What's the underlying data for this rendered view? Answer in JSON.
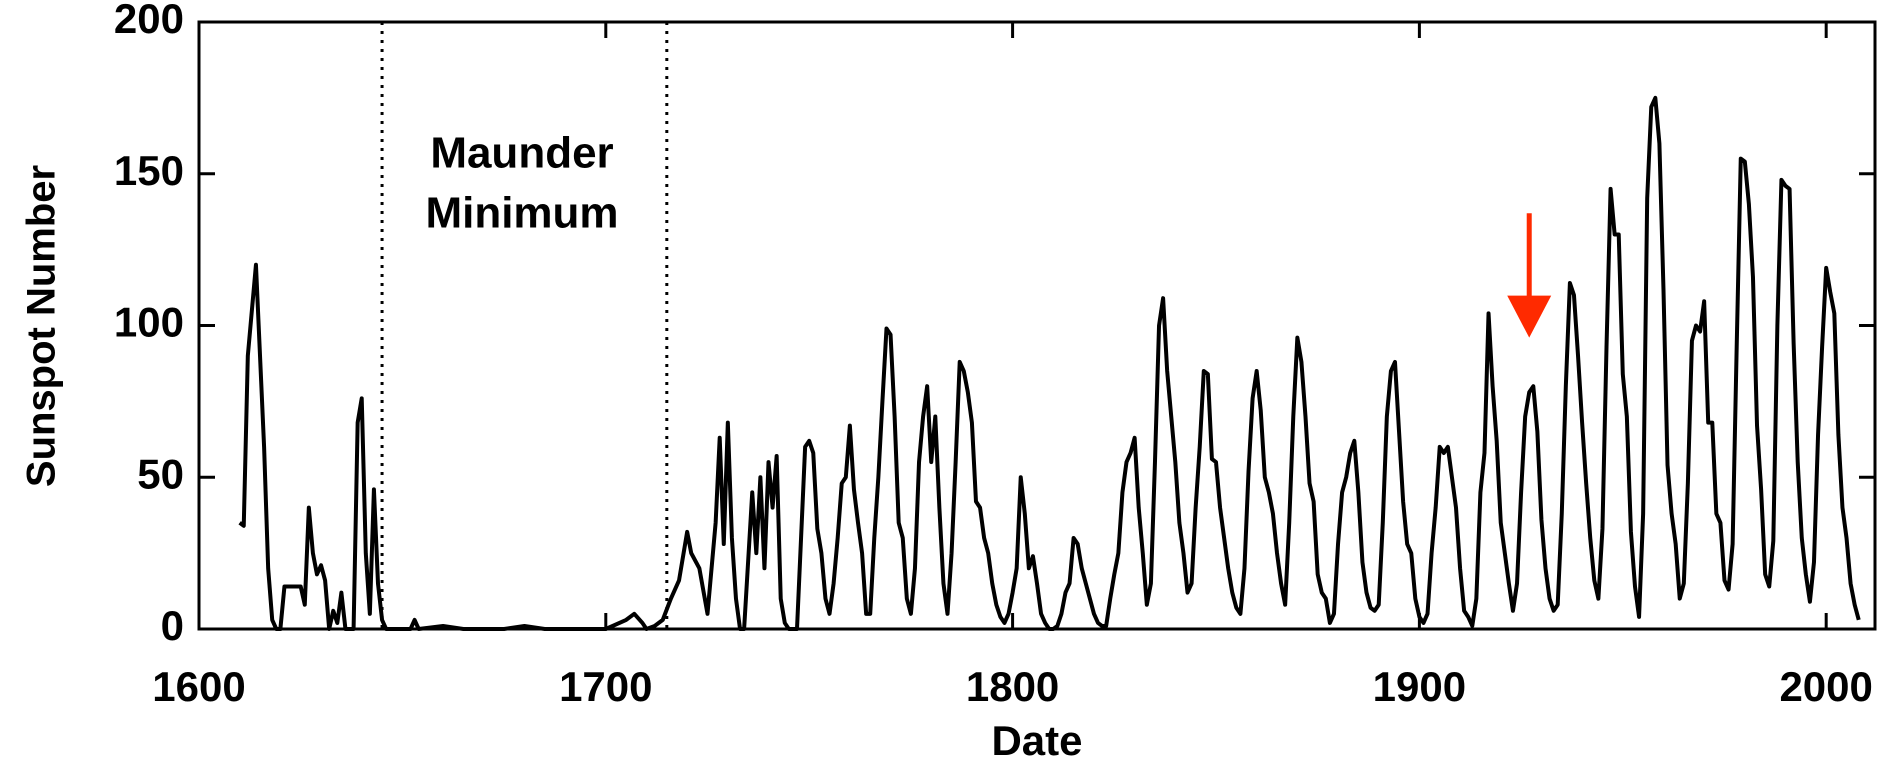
{
  "chart_data": {
    "type": "line",
    "ylabel": "Sunspot Number",
    "xlabel": "Date",
    "annotation_lines": [
      "Maunder",
      "Minimum"
    ],
    "vlines": [
      1645,
      1715
    ],
    "arrow": {
      "x": 1927,
      "y_start": 137,
      "y_end": 96,
      "color": "#ff2a00"
    },
    "xlim": [
      1600,
      2012
    ],
    "ylim": [
      0,
      200
    ],
    "xticks": [
      1600,
      1700,
      1800,
      1900,
      2000
    ],
    "yticks": [
      0,
      50,
      100,
      150,
      200
    ],
    "x": [
      1610,
      1611,
      1612,
      1614,
      1616,
      1617,
      1618,
      1619,
      1620,
      1621,
      1623,
      1625,
      1626,
      1627,
      1628,
      1629,
      1630,
      1631,
      1632,
      1633,
      1634,
      1635,
      1636,
      1638,
      1639,
      1640,
      1641,
      1642,
      1643,
      1644,
      1645,
      1646,
      1650,
      1652,
      1653,
      1654,
      1660,
      1665,
      1670,
      1675,
      1680,
      1685,
      1690,
      1695,
      1700,
      1705,
      1707,
      1709,
      1710,
      1712,
      1714,
      1716,
      1718,
      1720,
      1721,
      1723,
      1725,
      1727,
      1728,
      1729,
      1730,
      1731,
      1732,
      1733,
      1734,
      1736,
      1737,
      1738,
      1739,
      1740,
      1741,
      1742,
      1743,
      1744,
      1745,
      1746,
      1747,
      1749,
      1750,
      1751,
      1752,
      1753,
      1754,
      1755,
      1756,
      1757,
      1758,
      1759,
      1760,
      1761,
      1762,
      1763,
      1764,
      1765,
      1766,
      1767,
      1768,
      1769,
      1770,
      1771,
      1772,
      1773,
      1774,
      1775,
      1776,
      1777,
      1778,
      1779,
      1780,
      1781,
      1782,
      1783,
      1784,
      1785,
      1786,
      1787,
      1788,
      1789,
      1790,
      1791,
      1792,
      1793,
      1794,
      1795,
      1796,
      1797,
      1798,
      1799,
      1800,
      1801,
      1802,
      1803,
      1804,
      1805,
      1806,
      1807,
      1808,
      1809,
      1810,
      1811,
      1812,
      1813,
      1814,
      1815,
      1816,
      1817,
      1818,
      1819,
      1820,
      1821,
      1822,
      1823,
      1824,
      1825,
      1826,
      1827,
      1828,
      1829,
      1830,
      1831,
      1832,
      1833,
      1834,
      1835,
      1836,
      1837,
      1838,
      1839,
      1840,
      1841,
      1842,
      1843,
      1844,
      1845,
      1846,
      1847,
      1848,
      1849,
      1850,
      1851,
      1852,
      1853,
      1854,
      1855,
      1856,
      1857,
      1858,
      1859,
      1860,
      1861,
      1862,
      1863,
      1864,
      1865,
      1866,
      1867,
      1868,
      1869,
      1870,
      1871,
      1872,
      1873,
      1874,
      1875,
      1876,
      1877,
      1878,
      1879,
      1880,
      1881,
      1882,
      1883,
      1884,
      1885,
      1886,
      1887,
      1888,
      1889,
      1890,
      1891,
      1892,
      1893,
      1894,
      1895,
      1896,
      1897,
      1898,
      1899,
      1900,
      1901,
      1902,
      1903,
      1904,
      1905,
      1906,
      1907,
      1908,
      1909,
      1910,
      1911,
      1912,
      1913,
      1914,
      1915,
      1916,
      1917,
      1918,
      1919,
      1920,
      1921,
      1922,
      1923,
      1924,
      1925,
      1926,
      1927,
      1928,
      1929,
      1930,
      1931,
      1932,
      1933,
      1934,
      1935,
      1936,
      1937,
      1938,
      1939,
      1940,
      1941,
      1942,
      1943,
      1944,
      1945,
      1946,
      1947,
      1948,
      1949,
      1950,
      1951,
      1952,
      1953,
      1954,
      1955,
      1956,
      1957,
      1958,
      1959,
      1960,
      1961,
      1962,
      1963,
      1964,
      1965,
      1966,
      1967,
      1968,
      1969,
      1970,
      1971,
      1972,
      1973,
      1974,
      1975,
      1976,
      1977,
      1978,
      1979,
      1980,
      1981,
      1982,
      1983,
      1984,
      1985,
      1986,
      1987,
      1988,
      1989,
      1990,
      1991,
      1992,
      1993,
      1994,
      1995,
      1996,
      1997,
      1998,
      1999,
      2000,
      2001,
      2002,
      2003,
      2004,
      2005,
      2006,
      2007,
      2008
    ],
    "series": [
      {
        "color": "#000000",
        "values": [
          35,
          34,
          90,
          120,
          60,
          20,
          3,
          0,
          0,
          14,
          14,
          14,
          8,
          40,
          25,
          18,
          21,
          16,
          0,
          6,
          2,
          12,
          0,
          0,
          68,
          76,
          25,
          5,
          46,
          15,
          3,
          0,
          0,
          0,
          3,
          0,
          1,
          0,
          0,
          0,
          1,
          0,
          0,
          0,
          0,
          3,
          5,
          2,
          0,
          1,
          3,
          10,
          16,
          32,
          25,
          20,
          5,
          35,
          63,
          28,
          68,
          30,
          10,
          0,
          0,
          45,
          25,
          50,
          20,
          55,
          40,
          57,
          10,
          2,
          0,
          0,
          0,
          60,
          62,
          58,
          33,
          25,
          10,
          5,
          15,
          30,
          48,
          50,
          67,
          46,
          35,
          25,
          5,
          5,
          30,
          50,
          75,
          99,
          97,
          70,
          35,
          30,
          10,
          5,
          20,
          55,
          70,
          80,
          55,
          70,
          40,
          15,
          5,
          25,
          55,
          88,
          85,
          78,
          68,
          42,
          40,
          30,
          25,
          15,
          8,
          4,
          2,
          5,
          12,
          20,
          50,
          38,
          20,
          24,
          15,
          5,
          2,
          0,
          0,
          1,
          5,
          12,
          15,
          30,
          28,
          20,
          15,
          10,
          5,
          2,
          1,
          1,
          10,
          18,
          25,
          45,
          55,
          58,
          63,
          40,
          25,
          8,
          15,
          55,
          100,
          109,
          85,
          70,
          55,
          35,
          25,
          12,
          15,
          40,
          60,
          85,
          84,
          56,
          55,
          40,
          30,
          20,
          12,
          7,
          5,
          20,
          52,
          76,
          85,
          72,
          50,
          45,
          38,
          25,
          15,
          8,
          35,
          70,
          96,
          88,
          70,
          48,
          42,
          18,
          12,
          10,
          2,
          5,
          28,
          45,
          50,
          58,
          62,
          45,
          22,
          12,
          7,
          6,
          8,
          35,
          70,
          85,
          88,
          65,
          42,
          28,
          25,
          10,
          4,
          2,
          5,
          25,
          40,
          60,
          58,
          60,
          50,
          40,
          20,
          6,
          4,
          1,
          10,
          45,
          58,
          104,
          80,
          62,
          35,
          25,
          15,
          6,
          15,
          45,
          70,
          78,
          80,
          65,
          36,
          20,
          10,
          6,
          8,
          38,
          80,
          114,
          110,
          90,
          68,
          48,
          30,
          16,
          10,
          33,
          93,
          145,
          130,
          130,
          84,
          70,
          32,
          14,
          4,
          38,
          142,
          172,
          175,
          160,
          112,
          54,
          38,
          28,
          10,
          15,
          48,
          95,
          100,
          98,
          108,
          68,
          68,
          38,
          35,
          16,
          13,
          28,
          93,
          155,
          154,
          140,
          116,
          67,
          46,
          18,
          14,
          29,
          100,
          148,
          146,
          145,
          94,
          55,
          30,
          18,
          9,
          22,
          64,
          93,
          119,
          111,
          104,
          64,
          40,
          30,
          15,
          8,
          3
        ]
      }
    ]
  }
}
